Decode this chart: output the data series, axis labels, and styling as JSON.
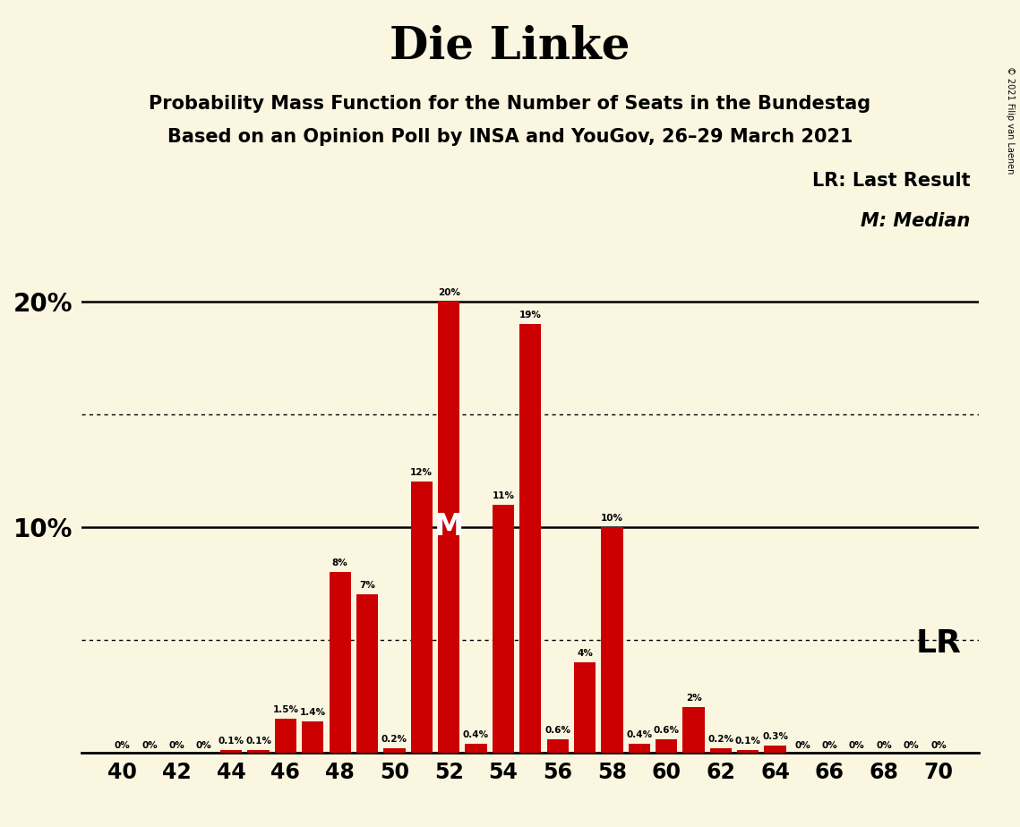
{
  "title": "Die Linke",
  "subtitle1": "Probability Mass Function for the Number of Seats in the Bundestag",
  "subtitle2": "Based on an Opinion Poll by INSA and YouGov, 26–29 March 2021",
  "background_color": "#FAF6E0",
  "bar_color": "#CC0000",
  "seats": [
    40,
    41,
    42,
    43,
    44,
    45,
    46,
    47,
    48,
    49,
    50,
    51,
    52,
    53,
    54,
    55,
    56,
    57,
    58,
    59,
    60,
    61,
    62,
    63,
    64,
    65,
    66,
    67,
    68,
    69,
    70
  ],
  "probabilities": [
    0.0,
    0.0,
    0.0,
    0.0,
    0.1,
    0.1,
    1.5,
    1.4,
    8.0,
    7.0,
    0.2,
    12.0,
    20.0,
    0.4,
    11.0,
    19.0,
    0.6,
    4.0,
    10.0,
    0.4,
    0.6,
    2.0,
    0.2,
    0.1,
    0.3,
    0.0,
    0.0,
    0.0,
    0.0,
    0.0,
    0.0
  ],
  "labels": [
    "0%",
    "0%",
    "0%",
    "0%",
    "0.1%",
    "0.1%",
    "1.5%",
    "1.4%",
    "8%",
    "7%",
    "0.2%",
    "12%",
    "20%",
    "0.4%",
    "11%",
    "19%",
    "0.6%",
    "4%",
    "10%",
    "0.4%",
    "0.6%",
    "2%",
    "0.2%",
    "0.1%",
    "0.3%",
    "0%",
    "0%",
    "0%",
    "0%",
    "0%",
    "0%"
  ],
  "ylim": [
    0,
    22
  ],
  "dotted_lines": [
    5.0,
    15.0
  ],
  "solid_lines": [
    10.0,
    20.0
  ],
  "median_seat": 52,
  "median_label": "M",
  "lr_seat": 64,
  "lr_label": "LR",
  "copyright_text": "© 2021 Filip van Laenen",
  "legend_lr": "LR: Last Result",
  "legend_m": "M: Median"
}
